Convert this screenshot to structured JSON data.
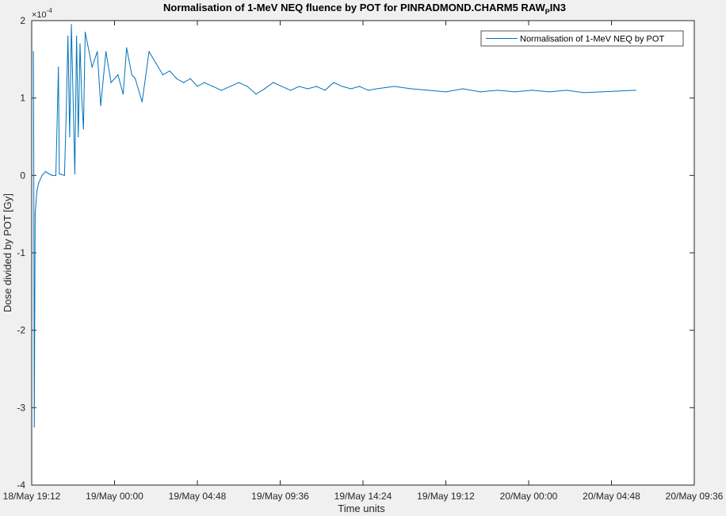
{
  "chart_data": {
    "type": "line",
    "title_main": "Normalisation of 1-MeV NEQ fluence by POT for PINRADMOND.CHARM5 RAW",
    "title_subscript": "P",
    "title_tail": "IN3",
    "xlabel": "Time units",
    "ylabel": "Dose divided by POT [Gy]",
    "y_exponent_label": "×10",
    "y_exponent_power": "-4",
    "x_range_hours": [
      0,
      38.4
    ],
    "x_tick_labels": [
      "18/May 19:12",
      "19/May 00:00",
      "19/May 04:48",
      "19/May 09:36",
      "19/May 14:24",
      "19/May 19:12",
      "20/May 00:00",
      "20/May 04:48",
      "20/May 09:36"
    ],
    "ylim": [
      -4,
      2
    ],
    "y_ticks": [
      -4,
      -3,
      -2,
      -1,
      0,
      1,
      2
    ],
    "y_tick_labels": [
      "-4",
      "-3",
      "-2",
      "-1",
      "0",
      "1",
      "2"
    ],
    "grid": false,
    "legend_position": "top-right",
    "series": [
      {
        "name": "Normalisation of 1-MeV NEQ by POT",
        "color": "#0072bd",
        "points": [
          [
            0.1,
            1.6
          ],
          [
            0.12,
            0.2
          ],
          [
            0.15,
            -3.25
          ],
          [
            0.2,
            -0.5
          ],
          [
            0.3,
            -0.2
          ],
          [
            0.4,
            -0.1
          ],
          [
            0.6,
            0.0
          ],
          [
            0.8,
            0.05
          ],
          [
            1.0,
            0.02
          ],
          [
            1.2,
            0.0
          ],
          [
            1.4,
            0.0
          ],
          [
            1.55,
            1.4
          ],
          [
            1.6,
            0.02
          ],
          [
            1.9,
            0.0
          ],
          [
            2.0,
            0.8
          ],
          [
            2.1,
            1.8
          ],
          [
            2.2,
            0.5
          ],
          [
            2.3,
            1.95
          ],
          [
            2.5,
            0.02
          ],
          [
            2.6,
            1.8
          ],
          [
            2.7,
            0.5
          ],
          [
            2.8,
            1.7
          ],
          [
            2.9,
            1.0
          ],
          [
            3.0,
            0.6
          ],
          [
            3.1,
            1.85
          ],
          [
            3.5,
            1.4
          ],
          [
            3.8,
            1.6
          ],
          [
            4.0,
            0.9
          ],
          [
            4.3,
            1.6
          ],
          [
            4.6,
            1.2
          ],
          [
            5.0,
            1.3
          ],
          [
            5.3,
            1.05
          ],
          [
            5.5,
            1.65
          ],
          [
            5.8,
            1.3
          ],
          [
            6.0,
            1.25
          ],
          [
            6.4,
            0.95
          ],
          [
            6.8,
            1.6
          ],
          [
            7.2,
            1.45
          ],
          [
            7.6,
            1.3
          ],
          [
            8.0,
            1.35
          ],
          [
            8.4,
            1.25
          ],
          [
            8.8,
            1.2
          ],
          [
            9.2,
            1.25
          ],
          [
            9.6,
            1.15
          ],
          [
            10.0,
            1.2
          ],
          [
            10.5,
            1.15
          ],
          [
            11.0,
            1.1
          ],
          [
            11.5,
            1.15
          ],
          [
            12.0,
            1.2
          ],
          [
            12.5,
            1.15
          ],
          [
            13.0,
            1.05
          ],
          [
            13.5,
            1.12
          ],
          [
            14.0,
            1.2
          ],
          [
            14.5,
            1.15
          ],
          [
            15.0,
            1.1
          ],
          [
            15.5,
            1.15
          ],
          [
            16.0,
            1.12
          ],
          [
            16.5,
            1.15
          ],
          [
            17.0,
            1.1
          ],
          [
            17.5,
            1.2
          ],
          [
            18.0,
            1.15
          ],
          [
            18.5,
            1.12
          ],
          [
            19.0,
            1.15
          ],
          [
            19.5,
            1.1
          ],
          [
            20.0,
            1.12
          ],
          [
            21.0,
            1.15
          ],
          [
            22.0,
            1.12
          ],
          [
            23.0,
            1.1
          ],
          [
            24.0,
            1.08
          ],
          [
            25.0,
            1.12
          ],
          [
            26.0,
            1.08
          ],
          [
            27.0,
            1.1
          ],
          [
            28.0,
            1.08
          ],
          [
            29.0,
            1.1
          ],
          [
            30.0,
            1.08
          ],
          [
            31.0,
            1.1
          ],
          [
            32.0,
            1.07
          ],
          [
            33.0,
            1.08
          ],
          [
            34.0,
            1.09
          ],
          [
            35.0,
            1.1
          ]
        ]
      }
    ]
  }
}
